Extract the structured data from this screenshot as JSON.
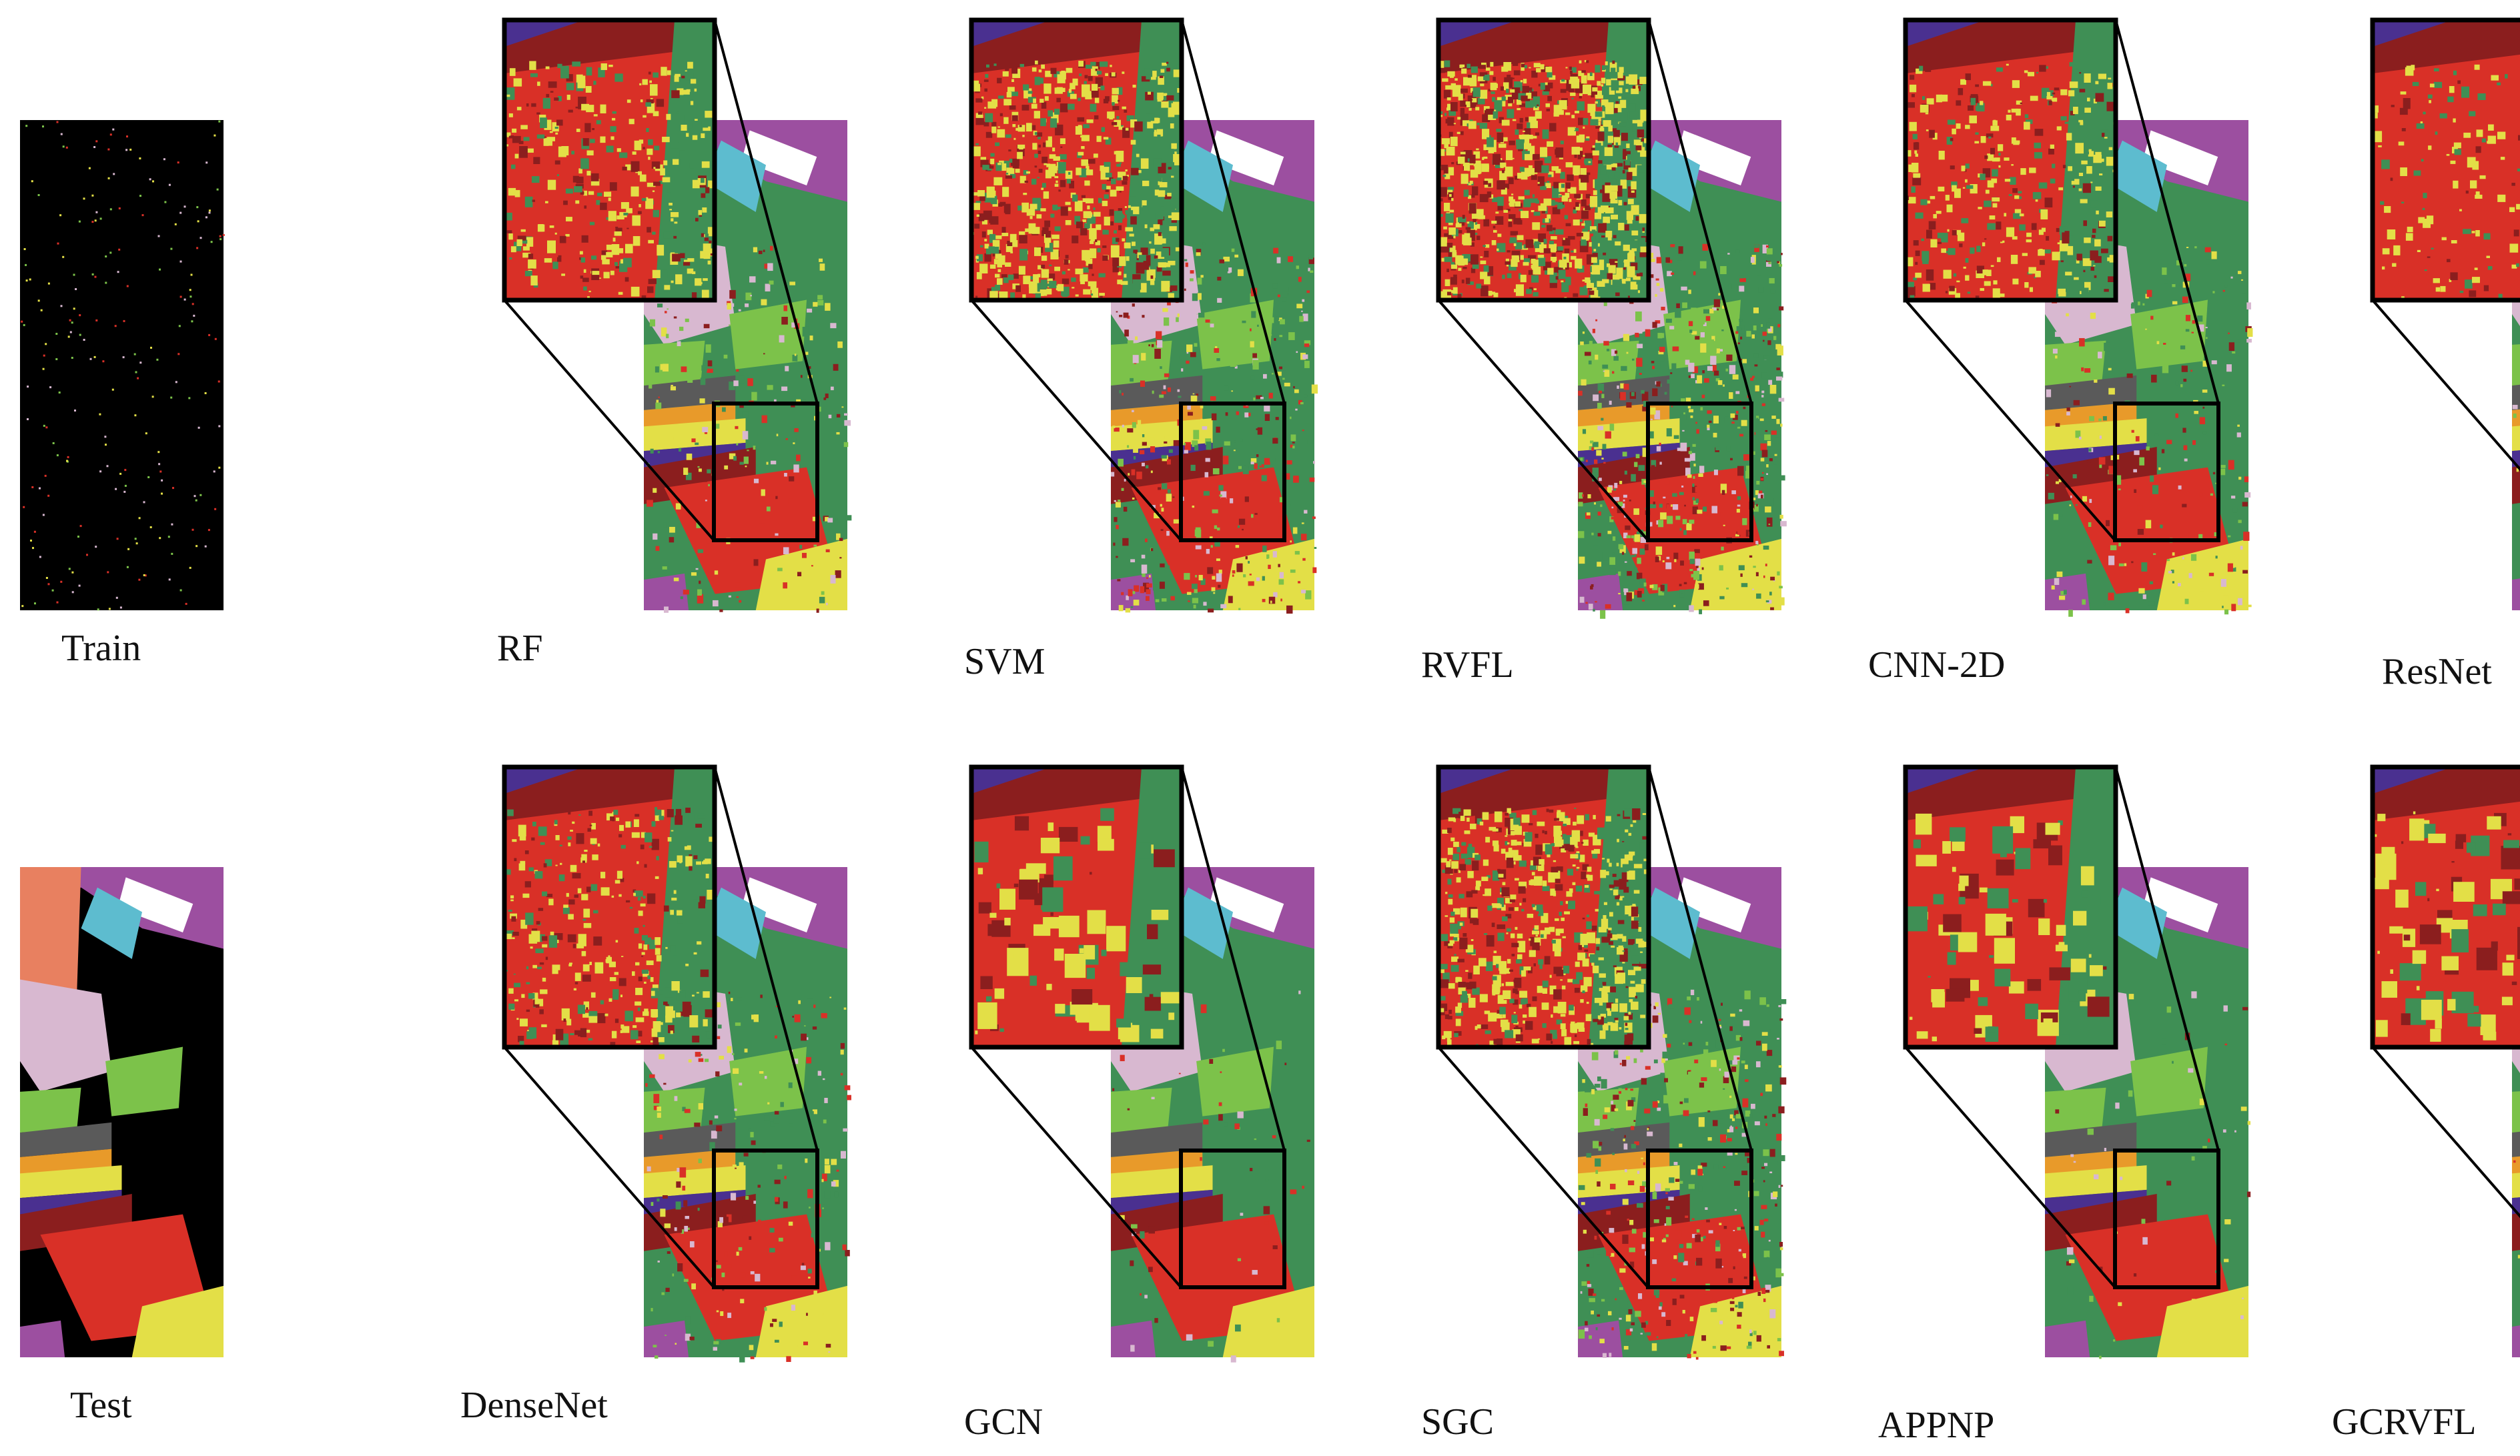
{
  "figure": {
    "panels": [
      {
        "label": "Train",
        "kind": "train"
      },
      {
        "label": "RF",
        "kind": "map",
        "noise": "medium"
      },
      {
        "label": "SVM",
        "kind": "map",
        "noise": "high"
      },
      {
        "label": "RVFL",
        "kind": "map",
        "noise": "very-high"
      },
      {
        "label": "CNN-2D",
        "kind": "map",
        "noise": "medium"
      },
      {
        "label": "ResNet",
        "kind": "map",
        "noise": "low"
      },
      {
        "label": "Test",
        "kind": "test"
      },
      {
        "label": "DenseNet",
        "kind": "map",
        "noise": "medium"
      },
      {
        "label": "GCN",
        "kind": "map",
        "noise": "smooth"
      },
      {
        "label": "SGC",
        "kind": "map",
        "noise": "high"
      },
      {
        "label": "APPNP",
        "kind": "map",
        "noise": "smooth"
      },
      {
        "label": "GCRVFL",
        "kind": "map",
        "noise": "smooth"
      }
    ],
    "class_colors": {
      "red": "#d93027",
      "yellow": "#e3df47",
      "green": "#3f8f55",
      "lightgreen": "#7cc24a",
      "pink": "#d8b8d0",
      "purple": "#9c4fa0",
      "cyan": "#5dbccf",
      "white": "#ffffff",
      "salmon": "#e88060",
      "darkred": "#8b1e1e",
      "gray": "#5a5a5a",
      "brown": "#a0522d",
      "orange": "#e89a2a",
      "indigo": "#4a3090",
      "black": "#000000"
    }
  }
}
